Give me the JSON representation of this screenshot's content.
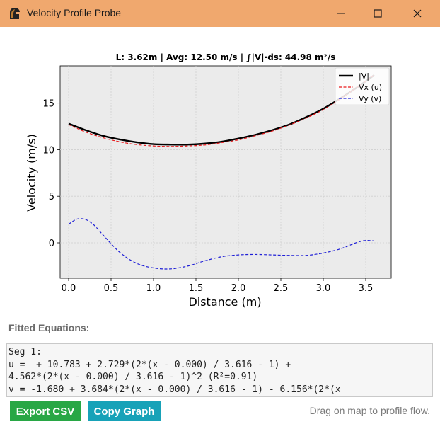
{
  "window": {
    "title": "Velocity Profile Probe",
    "icon": "gladiator-helmet-icon",
    "controls": [
      "minimize-icon",
      "maximize-icon",
      "close-icon"
    ]
  },
  "chart_data": {
    "type": "line",
    "title": "L: 3.62m | Avg: 12.50 m/s | ∫|V|·ds: 44.98 m²/s",
    "xlabel": "Distance (m)",
    "ylabel": "Velocity (m/s)",
    "xlim": [
      -0.1,
      3.8
    ],
    "ylim": [
      -3.8,
      19
    ],
    "xticks": [
      0.0,
      0.5,
      1.0,
      1.5,
      2.0,
      2.5,
      3.0,
      3.5
    ],
    "xtick_labels": [
      "0.0",
      "0.5",
      "1.0",
      "1.5",
      "2.0",
      "2.5",
      "3.0",
      "3.5"
    ],
    "yticks": [
      0,
      5,
      10,
      15
    ],
    "ytick_labels": [
      "0",
      "5",
      "10",
      "15"
    ],
    "grid": true,
    "legend_position": "top-right",
    "series": [
      {
        "name": "|V|",
        "color": "#000000",
        "style": "solid",
        "x": [
          0.0,
          0.2,
          0.4,
          0.6,
          0.8,
          1.0,
          1.2,
          1.4,
          1.6,
          1.8,
          2.0,
          2.2,
          2.4,
          2.6,
          2.8,
          3.0,
          3.2,
          3.4,
          3.6
        ],
        "values": [
          12.8,
          12.1,
          11.5,
          11.1,
          10.8,
          10.6,
          10.55,
          10.55,
          10.65,
          10.85,
          11.2,
          11.6,
          12.1,
          12.7,
          13.5,
          14.4,
          15.5,
          16.7,
          18.0
        ]
      },
      {
        "name": "Vx (u)",
        "color": "#e8191c",
        "style": "dashed",
        "x": [
          0.0,
          0.2,
          0.4,
          0.6,
          0.8,
          1.0,
          1.2,
          1.4,
          1.6,
          1.8,
          2.0,
          2.2,
          2.4,
          2.6,
          2.8,
          3.0,
          3.2,
          3.4,
          3.6
        ],
        "values": [
          12.7,
          11.9,
          11.3,
          10.85,
          10.55,
          10.4,
          10.35,
          10.4,
          10.5,
          10.75,
          11.05,
          11.5,
          12.0,
          12.65,
          13.4,
          14.3,
          15.45,
          16.7,
          18.0
        ]
      },
      {
        "name": "Vy (v)",
        "color": "#1f1fd6",
        "style": "dashed",
        "x": [
          0.0,
          0.1,
          0.2,
          0.3,
          0.4,
          0.6,
          0.8,
          1.0,
          1.2,
          1.4,
          1.6,
          1.8,
          2.0,
          2.2,
          2.4,
          2.6,
          2.8,
          3.0,
          3.2,
          3.4,
          3.5,
          3.6
        ],
        "values": [
          2.0,
          2.55,
          2.5,
          1.9,
          0.9,
          -1.0,
          -2.2,
          -2.7,
          -2.8,
          -2.5,
          -1.95,
          -1.5,
          -1.3,
          -1.25,
          -1.3,
          -1.35,
          -1.35,
          -1.1,
          -0.65,
          0.05,
          0.25,
          0.2
        ]
      }
    ]
  },
  "equations": {
    "label": "Fitted Equations:",
    "lines": [
      "Seg 1:",
      "u =  + 10.783 + 2.729*(2*(x - 0.000) / 3.616 - 1) +",
      "4.562*(2*(x - 0.000) / 3.616 - 1)^2 (R²=0.91)",
      "v = -1.680 + 3.684*(2*(x - 0.000) / 3.616 - 1) - 6.156*(2*(x"
    ]
  },
  "buttons": {
    "export_csv": "Export CSV",
    "copy_graph": "Copy Graph"
  },
  "colors": {
    "titlebar": "#f0a86e",
    "export_button": "#28a745",
    "copy_button": "#17a2b8",
    "plot_background": "#ebebeb"
  },
  "status": "Drag on map to profile flow."
}
